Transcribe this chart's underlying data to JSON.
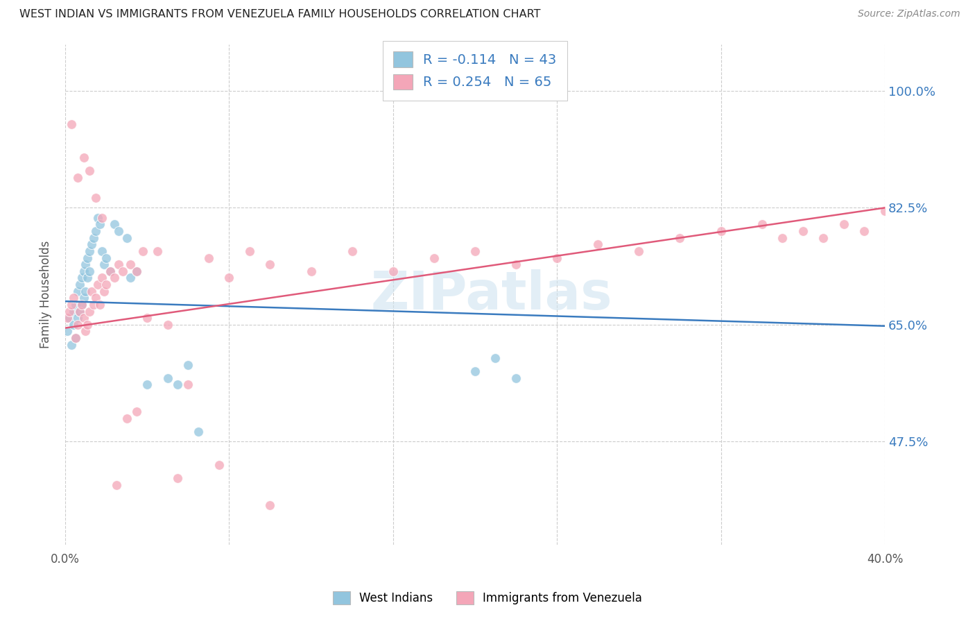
{
  "title": "WEST INDIAN VS IMMIGRANTS FROM VENEZUELA FAMILY HOUSEHOLDS CORRELATION CHART",
  "source": "Source: ZipAtlas.com",
  "ylabel": "Family Households",
  "ytick_labels": [
    "100.0%",
    "82.5%",
    "65.0%",
    "47.5%"
  ],
  "ytick_values": [
    1.0,
    0.825,
    0.65,
    0.475
  ],
  "xmin": 0.0,
  "xmax": 0.4,
  "ymin": 0.32,
  "ymax": 1.07,
  "color_blue": "#92c5de",
  "color_pink": "#f4a6b8",
  "color_blue_line": "#3a7bbf",
  "color_pink_line": "#e05a7a",
  "watermark": "ZIPatlas",
  "legend_label1": "West Indians",
  "legend_label2": "Immigrants from Venezuela",
  "west_indians_x": [
    0.001,
    0.002,
    0.003,
    0.004,
    0.004,
    0.005,
    0.005,
    0.006,
    0.006,
    0.007,
    0.007,
    0.008,
    0.008,
    0.009,
    0.009,
    0.01,
    0.01,
    0.011,
    0.011,
    0.012,
    0.012,
    0.013,
    0.014,
    0.015,
    0.016,
    0.017,
    0.018,
    0.019,
    0.02,
    0.022,
    0.024,
    0.026,
    0.03,
    0.032,
    0.035,
    0.04,
    0.05,
    0.055,
    0.06,
    0.065,
    0.2,
    0.21,
    0.22
  ],
  "west_indians_y": [
    0.64,
    0.66,
    0.62,
    0.67,
    0.65,
    0.68,
    0.63,
    0.7,
    0.66,
    0.67,
    0.71,
    0.72,
    0.68,
    0.73,
    0.69,
    0.74,
    0.7,
    0.75,
    0.72,
    0.76,
    0.73,
    0.77,
    0.78,
    0.79,
    0.81,
    0.8,
    0.76,
    0.74,
    0.75,
    0.73,
    0.8,
    0.79,
    0.78,
    0.72,
    0.73,
    0.56,
    0.57,
    0.56,
    0.59,
    0.49,
    0.58,
    0.6,
    0.57
  ],
  "venezuela_x": [
    0.001,
    0.002,
    0.003,
    0.004,
    0.005,
    0.006,
    0.007,
    0.008,
    0.009,
    0.01,
    0.011,
    0.012,
    0.013,
    0.014,
    0.015,
    0.016,
    0.017,
    0.018,
    0.019,
    0.02,
    0.022,
    0.024,
    0.026,
    0.028,
    0.03,
    0.032,
    0.035,
    0.038,
    0.04,
    0.045,
    0.05,
    0.06,
    0.07,
    0.08,
    0.09,
    0.1,
    0.12,
    0.14,
    0.16,
    0.18,
    0.2,
    0.22,
    0.24,
    0.26,
    0.28,
    0.3,
    0.32,
    0.34,
    0.35,
    0.36,
    0.37,
    0.38,
    0.39,
    0.4,
    0.003,
    0.006,
    0.009,
    0.012,
    0.015,
    0.018,
    0.025,
    0.035,
    0.055,
    0.075,
    0.1
  ],
  "venezuela_y": [
    0.66,
    0.67,
    0.68,
    0.69,
    0.63,
    0.65,
    0.67,
    0.68,
    0.66,
    0.64,
    0.65,
    0.67,
    0.7,
    0.68,
    0.69,
    0.71,
    0.68,
    0.72,
    0.7,
    0.71,
    0.73,
    0.72,
    0.74,
    0.73,
    0.51,
    0.74,
    0.73,
    0.76,
    0.66,
    0.76,
    0.65,
    0.56,
    0.75,
    0.72,
    0.76,
    0.74,
    0.73,
    0.76,
    0.73,
    0.75,
    0.76,
    0.74,
    0.75,
    0.77,
    0.76,
    0.78,
    0.79,
    0.8,
    0.78,
    0.79,
    0.78,
    0.8,
    0.79,
    0.82,
    0.95,
    0.87,
    0.9,
    0.88,
    0.84,
    0.81,
    0.41,
    0.52,
    0.42,
    0.44,
    0.38
  ]
}
